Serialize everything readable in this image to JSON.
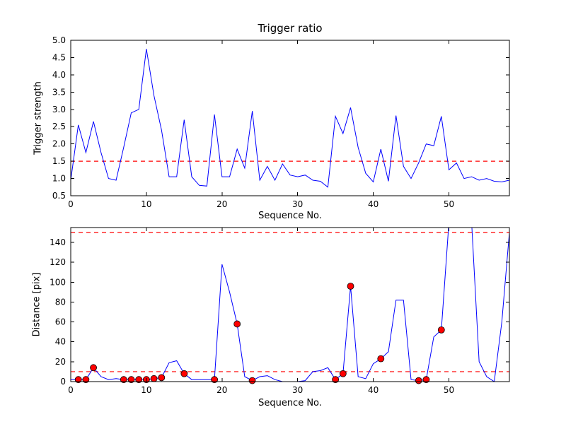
{
  "figure": {
    "background": "#ffffff",
    "colors": {
      "line": "#0000ff",
      "threshold": "#ff0000",
      "marker_fill": "#ff0000",
      "marker_edge": "#000000",
      "axis": "#000000",
      "text": "#000000"
    }
  },
  "chart_data": [
    {
      "type": "line",
      "title": "Trigger ratio",
      "xlabel": "Sequence No.",
      "ylabel": "Trigger strength",
      "xlim": [
        0,
        58
      ],
      "ylim": [
        0.5,
        5.0
      ],
      "grid": false,
      "legend": "none",
      "xticks": [
        0,
        10,
        20,
        30,
        40,
        50
      ],
      "xtick_labels": [
        "0",
        "10",
        "20",
        "30",
        "40",
        "50"
      ],
      "ytick_values": [
        0.5,
        1.0,
        1.5,
        2.0,
        2.5,
        3.0,
        3.5,
        4.0,
        4.5,
        5.0
      ],
      "ytick_labels": [
        "0.5",
        "1.0",
        "1.5",
        "2.0",
        "2.5",
        "3.0",
        "3.5",
        "4.0",
        "4.5",
        "5.0"
      ],
      "thresholds": [
        1.5
      ],
      "x": [
        0,
        1,
        2,
        3,
        4,
        5,
        6,
        7,
        8,
        9,
        10,
        11,
        12,
        13,
        14,
        15,
        16,
        17,
        18,
        19,
        20,
        21,
        22,
        23,
        24,
        25,
        26,
        27,
        28,
        29,
        30,
        31,
        32,
        33,
        34,
        35,
        36,
        37,
        38,
        39,
        40,
        41,
        42,
        43,
        44,
        45,
        46,
        47,
        48,
        49,
        50,
        51,
        52,
        53,
        54,
        55,
        56,
        57,
        58
      ],
      "y": [
        0.95,
        2.55,
        1.75,
        2.65,
        1.75,
        1.0,
        0.95,
        1.9,
        2.9,
        3.0,
        4.75,
        3.4,
        2.4,
        1.05,
        1.05,
        2.7,
        1.05,
        0.8,
        0.78,
        2.85,
        1.05,
        1.05,
        1.85,
        1.3,
        2.95,
        0.95,
        1.35,
        0.95,
        1.42,
        1.1,
        1.05,
        1.1,
        0.95,
        0.92,
        0.75,
        2.8,
        2.3,
        3.05,
        1.9,
        1.15,
        0.9,
        1.85,
        0.92,
        2.82,
        1.35,
        1.0,
        1.45,
        2.0,
        1.95,
        2.8,
        1.25,
        1.45,
        1.0,
        1.05,
        0.95,
        1.0,
        0.92,
        0.9,
        0.95
      ],
      "markers": []
    },
    {
      "type": "line",
      "title": "",
      "xlabel": "Sequence No.",
      "ylabel": "Distance [pix]",
      "xlim": [
        0,
        58
      ],
      "ylim": [
        0,
        155
      ],
      "grid": false,
      "legend": "none",
      "xticks": [
        0,
        10,
        20,
        30,
        40,
        50
      ],
      "xtick_labels": [
        "0",
        "10",
        "20",
        "30",
        "40",
        "50"
      ],
      "ytick_values": [
        0,
        20,
        40,
        60,
        80,
        100,
        120,
        140
      ],
      "ytick_labels": [
        "0",
        "20",
        "40",
        "60",
        "80",
        "100",
        "120",
        "140"
      ],
      "thresholds": [
        10,
        150
      ],
      "x": [
        0,
        1,
        2,
        3,
        4,
        5,
        6,
        7,
        8,
        9,
        10,
        11,
        12,
        13,
        14,
        15,
        16,
        17,
        18,
        19,
        20,
        21,
        22,
        23,
        24,
        25,
        26,
        27,
        28,
        29,
        30,
        31,
        32,
        33,
        34,
        35,
        36,
        37,
        38,
        39,
        40,
        41,
        42,
        43,
        44,
        45,
        46,
        47,
        48,
        49,
        50,
        51,
        52,
        53,
        54,
        55,
        56,
        57,
        58
      ],
      "y": [
        2,
        2,
        2,
        14,
        5,
        2,
        3,
        2,
        2,
        2,
        2,
        3,
        4,
        19,
        21,
        8,
        2,
        2,
        2,
        2,
        118,
        90,
        58,
        5,
        1,
        5,
        6,
        2,
        0,
        0,
        0,
        1,
        10,
        11,
        14,
        2,
        8,
        96,
        5,
        3,
        18,
        23,
        30,
        82,
        82,
        2,
        1,
        2,
        45,
        52,
        160,
        170,
        170,
        160,
        20,
        5,
        0,
        60,
        150
      ],
      "markers": [
        [
          1,
          2
        ],
        [
          2,
          2
        ],
        [
          3,
          14
        ],
        [
          7,
          2
        ],
        [
          8,
          2
        ],
        [
          9,
          2
        ],
        [
          10,
          2
        ],
        [
          11,
          3
        ],
        [
          12,
          4
        ],
        [
          15,
          8
        ],
        [
          19,
          2
        ],
        [
          22,
          58
        ],
        [
          24,
          1
        ],
        [
          35,
          2
        ],
        [
          36,
          8
        ],
        [
          37,
          96
        ],
        [
          41,
          23
        ],
        [
          46,
          1
        ],
        [
          47,
          2
        ],
        [
          49,
          52
        ]
      ]
    }
  ]
}
